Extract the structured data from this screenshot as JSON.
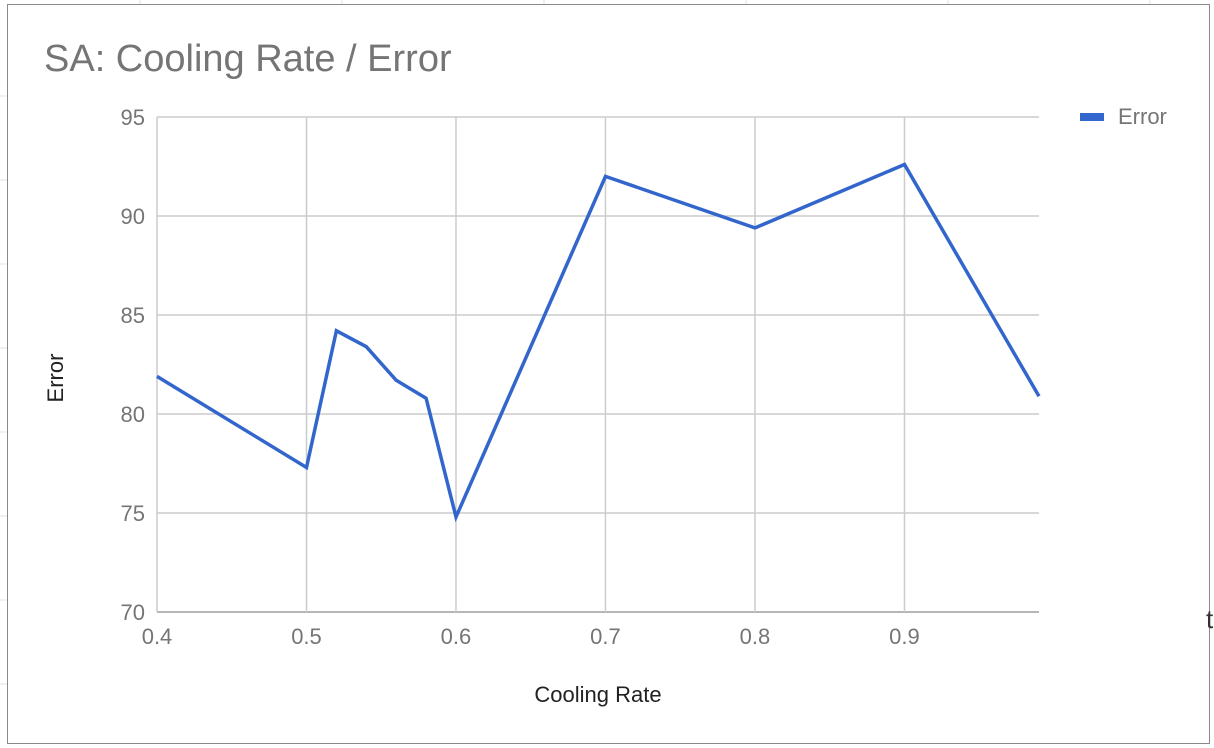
{
  "sheet": {
    "edge_glyph": "t"
  },
  "chart_data": {
    "type": "line",
    "title": "SA: Cooling Rate / Error",
    "xlabel": "Cooling Rate",
    "ylabel": "Error",
    "xlim": [
      0.4,
      0.99
    ],
    "ylim": [
      70,
      95
    ],
    "x_ticks": [
      "0.4",
      "0.5",
      "0.6",
      "0.7",
      "0.8",
      "0.9"
    ],
    "y_ticks": [
      "70",
      "75",
      "80",
      "85",
      "90",
      "95"
    ],
    "grid": true,
    "legend_position": "top-right",
    "series": [
      {
        "name": "Error",
        "color": "#3366cc",
        "points": [
          [
            0.4,
            81.9
          ],
          [
            0.5,
            77.3
          ],
          [
            0.52,
            84.2
          ],
          [
            0.54,
            83.4
          ],
          [
            0.56,
            81.7
          ],
          [
            0.58,
            80.8
          ],
          [
            0.6,
            74.8
          ],
          [
            0.7,
            92.0
          ],
          [
            0.8,
            89.4
          ],
          [
            0.9,
            92.6
          ],
          [
            0.99,
            80.9
          ]
        ]
      }
    ]
  }
}
